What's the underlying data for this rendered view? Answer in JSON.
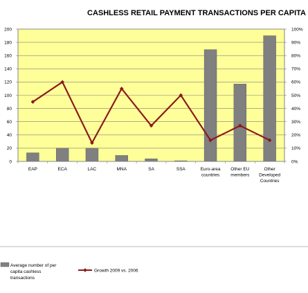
{
  "chart_data": {
    "type": "bar",
    "title": "CASHLESS RETAIL PAYMENT TRANSACTIONS PER CAPITA",
    "categories": [
      [
        "EAP"
      ],
      [
        "ECA"
      ],
      [
        "LAC"
      ],
      [
        "MNA"
      ],
      [
        "SA"
      ],
      [
        "SSA"
      ],
      [
        "Euro-area",
        "countries"
      ],
      [
        "Other EU",
        "members"
      ],
      [
        "Other",
        "Developed",
        "Countries"
      ]
    ],
    "series": [
      {
        "name": "Average number of per capita cashless transactions",
        "type": "bar",
        "axis": "left",
        "color": "#808080",
        "values": [
          13,
          20,
          20,
          9,
          4,
          1,
          169,
          117,
          190
        ]
      },
      {
        "name": "Growth 2009 vs. 2006",
        "type": "line",
        "axis": "right",
        "color": "#8B1A1A",
        "values": [
          45,
          60,
          14,
          55,
          27,
          50,
          16,
          27,
          16
        ]
      }
    ],
    "y_left": {
      "min": 0,
      "max": 200,
      "ticks": [
        0,
        20,
        40,
        60,
        80,
        100,
        120,
        140,
        160,
        180,
        200
      ]
    },
    "y_right": {
      "min": 0,
      "max": 100,
      "ticks": [
        "0%",
        "10%",
        "20%",
        "30%",
        "40%",
        "50%",
        "60%",
        "70%",
        "80%",
        "90%",
        "100%"
      ]
    },
    "grid": true,
    "plot_background": "#FFFF99",
    "legend_position": "bottom",
    "legend": {
      "bar_label": [
        "Average number of per",
        "capita cashless",
        "transactions"
      ],
      "line_label": "Growth 2009 vs. 2006"
    }
  }
}
